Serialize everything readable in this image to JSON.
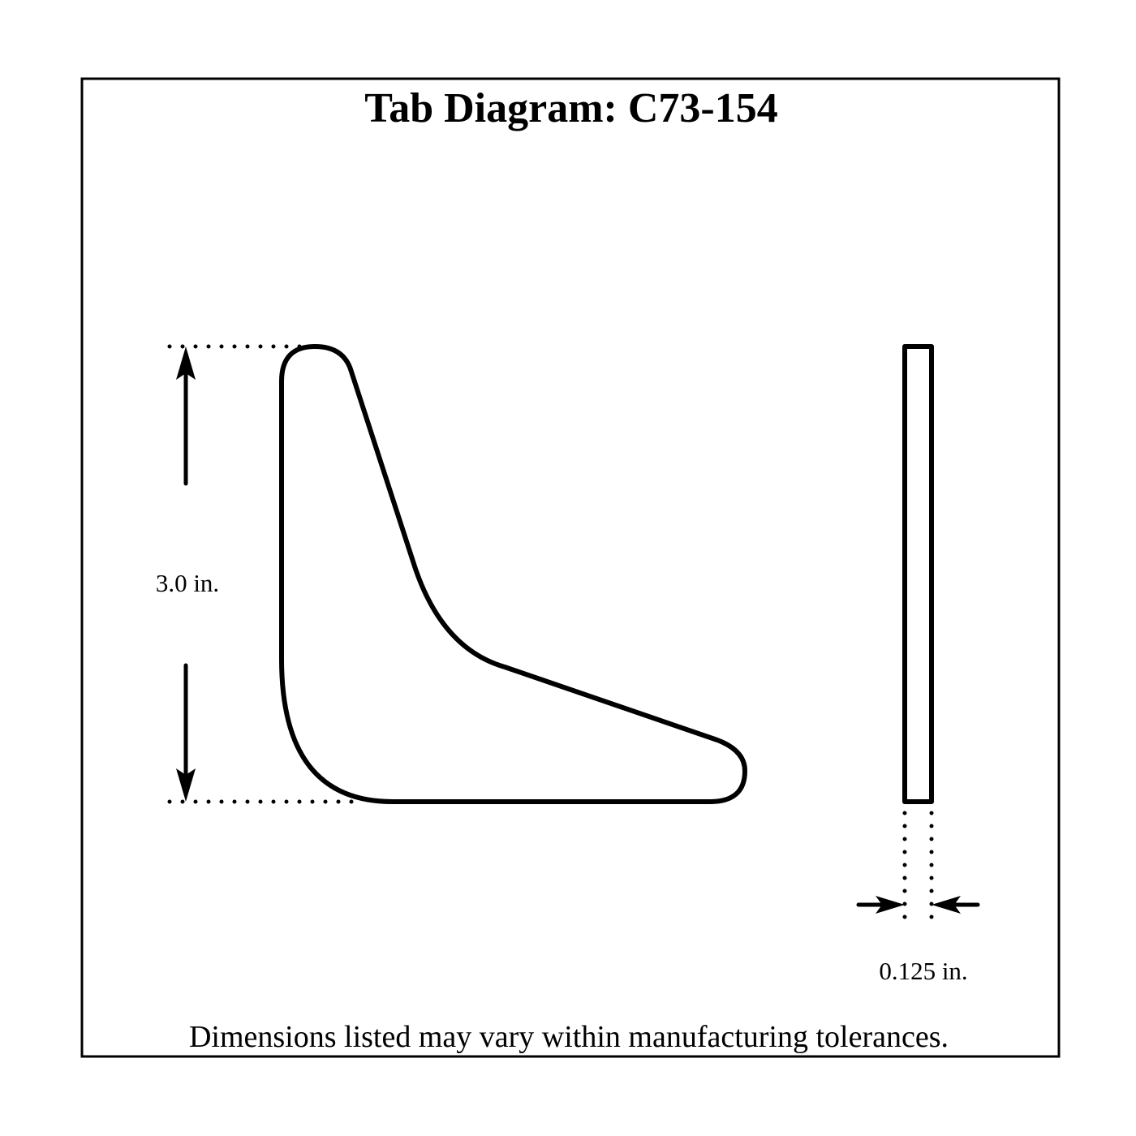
{
  "diagram": {
    "title": "Tab Diagram: C73-154",
    "height_label": "3.0 in.",
    "thickness_label": "0.125 in.",
    "footer_note": "Dimensions listed may vary within manufacturing tolerances."
  }
}
